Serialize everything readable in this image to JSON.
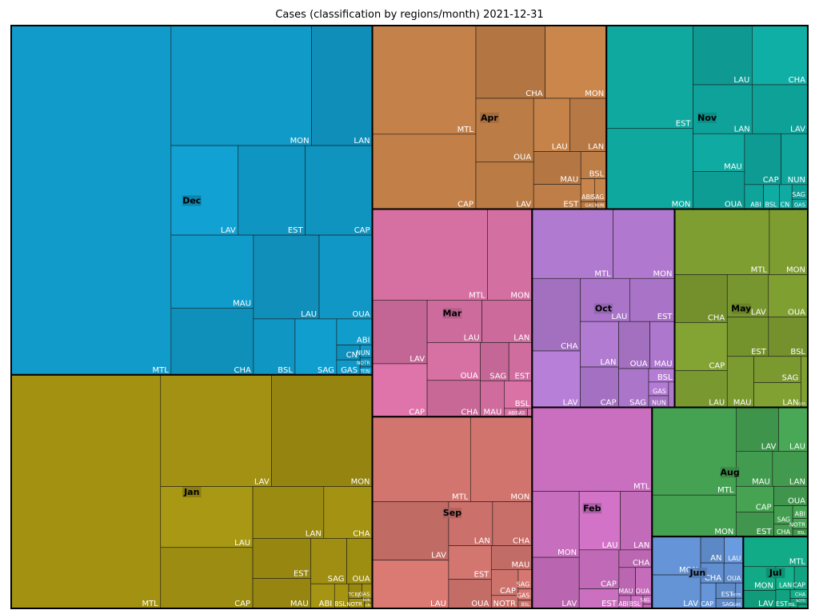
{
  "chart_data": {
    "type": "treemap",
    "title": "Cases (classification by regions/month)  2021-12-31",
    "months": [
      {
        "name": "Dec",
        "color": "#109bca",
        "regions": [
          {
            "name": "MTL",
            "value": 14400
          },
          {
            "name": "LAV",
            "value": 1550
          },
          {
            "name": "EST",
            "value": 1550
          },
          {
            "name": "CAP",
            "value": 1550
          },
          {
            "name": "MAU",
            "value": 1550
          },
          {
            "name": "MON",
            "value": 4350
          },
          {
            "name": "LAN",
            "value": 1880
          },
          {
            "name": "CHA",
            "value": 1420
          },
          {
            "name": "LAU",
            "value": 1420
          },
          {
            "name": "OUA",
            "value": 1150
          },
          {
            "name": "BSL",
            "value": 600
          },
          {
            "name": "SAG",
            "value": 600
          },
          {
            "name": "ABI",
            "value": 240
          },
          {
            "name": "CN",
            "value": 90
          },
          {
            "name": "GAS",
            "value": 90
          },
          {
            "name": "NUN",
            "value": 40
          },
          {
            "name": "NOTR",
            "value": 30
          },
          {
            "name": "TCBJ",
            "value": 25
          }
        ]
      },
      {
        "name": "Jan",
        "color": "#a39212",
        "regions": [
          {
            "name": "MTL",
            "value": 9000
          },
          {
            "name": "MON",
            "value": 2900
          },
          {
            "name": "LAV",
            "value": 3200
          },
          {
            "name": "LAU",
            "value": 1450
          },
          {
            "name": "CAP",
            "value": 1450
          },
          {
            "name": "LAN",
            "value": 950
          },
          {
            "name": "CHA",
            "value": 650
          },
          {
            "name": "EST",
            "value": 600
          },
          {
            "name": "MAU",
            "value": 450
          },
          {
            "name": "SAG",
            "value": 420
          },
          {
            "name": "OUA",
            "value": 300
          },
          {
            "name": "ABI",
            "value": 150
          },
          {
            "name": "BSL",
            "value": 90
          },
          {
            "name": "TCBJ",
            "value": 50
          },
          {
            "name": "GAS",
            "value": 40
          },
          {
            "name": "NOTR",
            "value": 40
          },
          {
            "name": "NUN",
            "value": 10
          },
          {
            "name": "CN",
            "value": 10
          }
        ]
      },
      {
        "name": "Apr",
        "color": "#c48149",
        "regions": [
          {
            "name": "MTL",
            "value": 2900
          },
          {
            "name": "CAP",
            "value": 2000
          },
          {
            "name": "CHA",
            "value": 1300
          },
          {
            "name": "MON",
            "value": 1150
          },
          {
            "name": "OUA",
            "value": 950
          },
          {
            "name": "LAV",
            "value": 700
          },
          {
            "name": "LAU",
            "value": 500
          },
          {
            "name": "LAN",
            "value": 500
          },
          {
            "name": "MAU",
            "value": 400
          },
          {
            "name": "EST",
            "value": 300
          },
          {
            "name": "BSL",
            "value": 180
          },
          {
            "name": "ABI",
            "value": 80
          },
          {
            "name": "SAG",
            "value": 70
          },
          {
            "name": "GAS",
            "value": 30
          },
          {
            "name": "NUN",
            "value": 20
          }
        ]
      },
      {
        "name": "Feb",
        "color": "#ca6fc0",
        "regions": [
          {
            "name": "MTL",
            "value": 2600
          },
          {
            "name": "MON",
            "value": 800
          },
          {
            "name": "LAV",
            "value": 620
          },
          {
            "name": "LAU",
            "value": 620
          },
          {
            "name": "LAN",
            "value": 480
          },
          {
            "name": "CAP",
            "value": 400
          },
          {
            "name": "EST",
            "value": 200
          },
          {
            "name": "CHA",
            "value": 150
          },
          {
            "name": "MAU",
            "value": 120
          },
          {
            "name": "OUA",
            "value": 120
          },
          {
            "name": "ABI",
            "value": 40
          },
          {
            "name": "BSL",
            "value": 40
          },
          {
            "name": "SAG",
            "value": 20
          },
          {
            "name": "GAS",
            "value": 10
          }
        ]
      },
      {
        "name": "Mar",
        "color": "#d670a3",
        "regions": [
          {
            "name": "MTL",
            "value": 2700
          },
          {
            "name": "LAV",
            "value": 900
          },
          {
            "name": "MON",
            "value": 1050
          },
          {
            "name": "CAP",
            "value": 750
          },
          {
            "name": "LAU",
            "value": 600
          },
          {
            "name": "LAN",
            "value": 550
          },
          {
            "name": "OUA",
            "value": 520
          },
          {
            "name": "CHA",
            "value": 500
          },
          {
            "name": "SAG",
            "value": 280
          },
          {
            "name": "EST",
            "value": 230
          },
          {
            "name": "BSL",
            "value": 200
          },
          {
            "name": "MAU",
            "value": 220
          },
          {
            "name": "ABI",
            "value": 30
          },
          {
            "name": "GAS",
            "value": 20
          },
          {
            "name": "NUN",
            "value": 10
          }
        ]
      },
      {
        "name": "Sep",
        "color": "#d3756f",
        "regions": [
          {
            "name": "MTL",
            "value": 2150
          },
          {
            "name": "MON",
            "value": 1350
          },
          {
            "name": "LAV",
            "value": 1150
          },
          {
            "name": "LAU",
            "value": 950
          },
          {
            "name": "LAN",
            "value": 500
          },
          {
            "name": "CHA",
            "value": 450
          },
          {
            "name": "EST",
            "value": 370
          },
          {
            "name": "OUA",
            "value": 320
          },
          {
            "name": "MAU",
            "value": 250
          },
          {
            "name": "CAP",
            "value": 180
          },
          {
            "name": "NOTR",
            "value": 90
          },
          {
            "name": "SAG",
            "value": 70
          },
          {
            "name": "GAS",
            "value": 40
          },
          {
            "name": "BSL",
            "value": 30
          }
        ]
      },
      {
        "name": "May",
        "color": "#7e9e31",
        "regions": [
          {
            "name": "MTL",
            "value": 1600
          },
          {
            "name": "MON",
            "value": 650
          },
          {
            "name": "CHA",
            "value": 650
          },
          {
            "name": "LAV",
            "value": 450
          },
          {
            "name": "EST",
            "value": 420
          },
          {
            "name": "CAP",
            "value": 650
          },
          {
            "name": "LAU",
            "value": 500
          },
          {
            "name": "OUA",
            "value": 430
          },
          {
            "name": "BSL",
            "value": 400
          },
          {
            "name": "MAU",
            "value": 350
          },
          {
            "name": "LAN",
            "value": 300
          },
          {
            "name": "SAG",
            "value": 320
          },
          {
            "name": "GAS",
            "value": 90
          }
        ]
      },
      {
        "name": "Nov",
        "color": "#0fa9a0",
        "regions": [
          {
            "name": "EST",
            "value": 2300
          },
          {
            "name": "MON",
            "value": 1800
          },
          {
            "name": "LAU",
            "value": 900
          },
          {
            "name": "CHA",
            "value": 850
          },
          {
            "name": "LAN",
            "value": 750
          },
          {
            "name": "LAV",
            "value": 700
          },
          {
            "name": "MAU",
            "value": 500
          },
          {
            "name": "CAP",
            "value": 480
          },
          {
            "name": "OUA",
            "value": 500
          },
          {
            "name": "NUN",
            "value": 350
          },
          {
            "name": "ABI",
            "value": 120
          },
          {
            "name": "BSL",
            "value": 100
          },
          {
            "name": "CN",
            "value": 80
          },
          {
            "name": "SAG",
            "value": 60
          },
          {
            "name": "GAS",
            "value": 40
          }
        ]
      },
      {
        "name": "Oct",
        "color": "#b17ad1",
        "regions": [
          {
            "name": "MTL",
            "value": 1450
          },
          {
            "name": "MON",
            "value": 1100
          },
          {
            "name": "CHA",
            "value": 900
          },
          {
            "name": "LAV",
            "value": 700
          },
          {
            "name": "LAU",
            "value": 550
          },
          {
            "name": "EST",
            "value": 500
          },
          {
            "name": "LAN",
            "value": 450
          },
          {
            "name": "CAP",
            "value": 400
          },
          {
            "name": "OUA",
            "value": 380
          },
          {
            "name": "MAU",
            "value": 300
          },
          {
            "name": "SAG",
            "value": 300
          },
          {
            "name": "BSL",
            "value": 90
          },
          {
            "name": "GAS",
            "value": 70
          },
          {
            "name": "NUN",
            "value": 60
          },
          {
            "name": "CN",
            "value": 40
          }
        ]
      },
      {
        "name": "Aug",
        "color": "#45a252",
        "regions": [
          {
            "name": "MTL",
            "value": 1900
          },
          {
            "name": "MON",
            "value": 900
          },
          {
            "name": "LAV",
            "value": 480
          },
          {
            "name": "LAN",
            "value": 320
          },
          {
            "name": "LAU",
            "value": 330
          },
          {
            "name": "MAU",
            "value": 330
          },
          {
            "name": "EST",
            "value": 240
          },
          {
            "name": "OUA",
            "value": 170
          },
          {
            "name": "CAP",
            "value": 250
          },
          {
            "name": "SAG",
            "value": 90
          },
          {
            "name": "CHA",
            "value": 60
          },
          {
            "name": "ABI",
            "value": 50
          },
          {
            "name": "BSL",
            "value": 30
          },
          {
            "name": "NOTR",
            "value": 40
          }
        ]
      },
      {
        "name": "Jun",
        "color": "#6595d8",
        "regions": [
          {
            "name": "MON",
            "value": 480
          },
          {
            "name": "LAV",
            "value": 420
          },
          {
            "name": "CHA",
            "value": 120
          },
          {
            "name": "OUA",
            "value": 100
          },
          {
            "name": "AN",
            "value": 160
          },
          {
            "name": "LAU",
            "value": 130
          },
          {
            "name": "CAP",
            "value": 100
          },
          {
            "name": "EST",
            "value": 80
          },
          {
            "name": "SAG",
            "value": 50
          },
          {
            "name": "NOTR",
            "value": 30
          },
          {
            "name": "GAS",
            "value": 20
          }
        ]
      },
      {
        "name": "Jul",
        "color": "#12ab87",
        "regions": [
          {
            "name": "MTL",
            "value": 500
          },
          {
            "name": "MON",
            "value": 200
          },
          {
            "name": "LAV",
            "value": 150
          },
          {
            "name": "LAN",
            "value": 110
          },
          {
            "name": "CAP",
            "value": 80
          },
          {
            "name": "EST",
            "value": 70
          },
          {
            "name": "CHA",
            "value": 40
          },
          {
            "name": "BSL",
            "value": 20
          },
          {
            "name": "NOTR",
            "value": 15
          },
          {
            "name": "GAS",
            "value": 10
          }
        ]
      }
    ]
  }
}
